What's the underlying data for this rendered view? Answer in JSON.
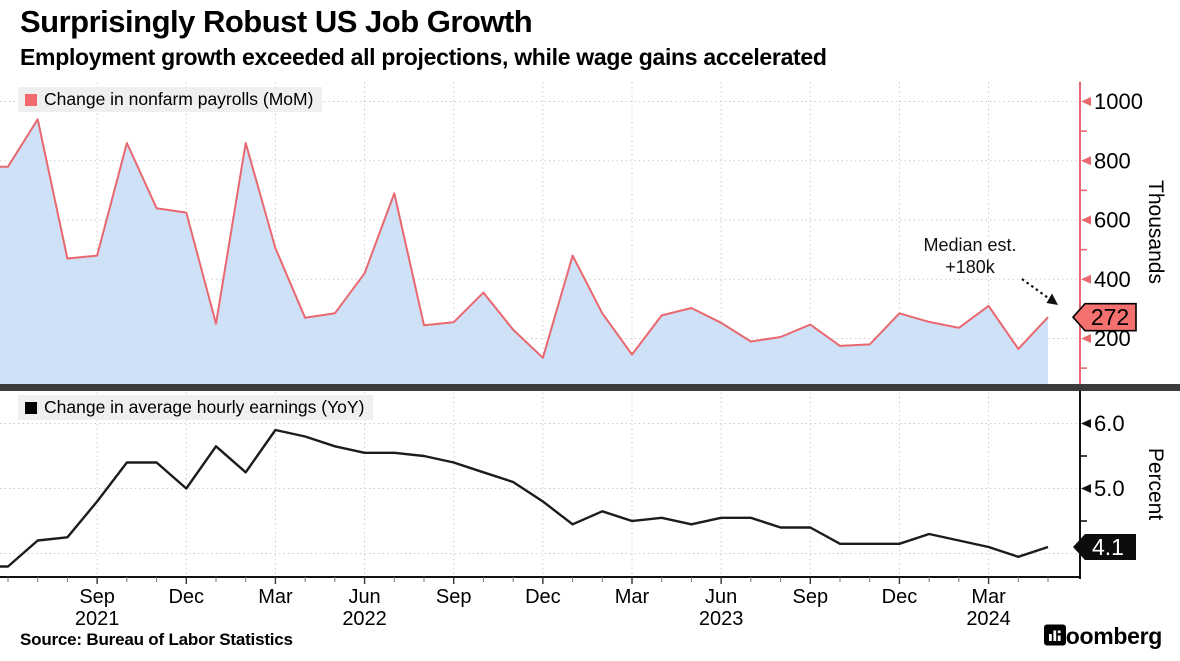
{
  "header": {
    "title": "Surprisingly Robust US Job Growth",
    "subtitle": "Employment growth exceeded all projections, while wage gains accelerated"
  },
  "source": {
    "label": "Source: Bureau of Labor Statistics"
  },
  "brand": {
    "name": "Bloomberg",
    "icon": "bar-chart-icon"
  },
  "annotations": {
    "median_line1": "Median est.",
    "median_line2": "+180k"
  },
  "x_axis": {
    "quarter_ticks": [
      {
        "month": "Sep",
        "year": "2021"
      },
      {
        "month": "Dec"
      },
      {
        "month": "Mar"
      },
      {
        "month": "Jun",
        "year": "2022"
      },
      {
        "month": "Sep"
      },
      {
        "month": "Dec"
      },
      {
        "month": "Mar"
      },
      {
        "month": "Jun",
        "year": "2023"
      },
      {
        "month": "Sep"
      },
      {
        "month": "Dec"
      },
      {
        "month": "Mar",
        "year": "2024"
      }
    ]
  },
  "chart_data": [
    {
      "type": "area",
      "panel": "top",
      "legend": "Change in nonfarm payrolls (MoM)",
      "ylabel": "Thousands",
      "x": [
        "Jun 2021",
        "Jul 2021",
        "Aug 2021",
        "Sep 2021",
        "Oct 2021",
        "Nov 2021",
        "Dec 2021",
        "Jan 2022",
        "Feb 2022",
        "Mar 2022",
        "Apr 2022",
        "May 2022",
        "Jun 2022",
        "Jul 2022",
        "Aug 2022",
        "Sep 2022",
        "Oct 2022",
        "Nov 2022",
        "Dec 2022",
        "Jan 2023",
        "Feb 2023",
        "Mar 2023",
        "Apr 2023",
        "May 2023",
        "Jun 2023",
        "Jul 2023",
        "Aug 2023",
        "Sep 2023",
        "Oct 2023",
        "Nov 2023",
        "Dec 2023",
        "Jan 2024",
        "Feb 2024",
        "Mar 2024",
        "Apr 2024",
        "May 2024"
      ],
      "values": [
        780,
        940,
        470,
        480,
        860,
        640,
        625,
        250,
        860,
        505,
        270,
        285,
        420,
        690,
        245,
        255,
        355,
        230,
        135,
        480,
        285,
        146,
        278,
        303,
        253,
        190,
        205,
        247,
        175,
        180,
        285,
        256,
        236,
        310,
        165,
        272
      ],
      "yticks_major": [
        200,
        400,
        600,
        800,
        1000
      ],
      "yticks_minor": [
        100,
        300,
        500,
        700,
        900
      ],
      "ylim_visible": [
        45,
        1070
      ],
      "grid": true,
      "last_point_label": "272",
      "median_estimate": 180
    },
    {
      "type": "line",
      "panel": "bottom",
      "legend": "Change in average hourly earnings (YoY)",
      "ylabel": "Percent",
      "x": [
        "Jun 2021",
        "Jul 2021",
        "Aug 2021",
        "Sep 2021",
        "Oct 2021",
        "Nov 2021",
        "Dec 2021",
        "Jan 2022",
        "Feb 2022",
        "Mar 2022",
        "Apr 2022",
        "May 2022",
        "Jun 2022",
        "Jul 2022",
        "Aug 2022",
        "Sep 2022",
        "Oct 2022",
        "Nov 2022",
        "Dec 2022",
        "Jan 2023",
        "Feb 2023",
        "Mar 2023",
        "Apr 2023",
        "May 2023",
        "Jun 2023",
        "Jul 2023",
        "Aug 2023",
        "Sep 2023",
        "Oct 2023",
        "Nov 2023",
        "Dec 2023",
        "Jan 2024",
        "Feb 2024",
        "Mar 2024",
        "Apr 2024",
        "May 2024"
      ],
      "values": [
        3.8,
        4.2,
        4.25,
        4.8,
        5.4,
        5.4,
        5.0,
        5.65,
        5.25,
        5.9,
        5.8,
        5.65,
        5.55,
        5.55,
        5.5,
        5.4,
        5.25,
        5.1,
        4.8,
        4.45,
        4.65,
        4.5,
        4.55,
        4.45,
        4.55,
        4.55,
        4.4,
        4.4,
        4.15,
        4.15,
        4.15,
        4.3,
        4.2,
        4.1,
        3.95,
        4.1
      ],
      "yticks_major": [
        5.0,
        6.0
      ],
      "yticks_minor": [
        4.5,
        5.5
      ],
      "gridlines": [
        4.0,
        5.0,
        6.0
      ],
      "ylim_visible": [
        3.55,
        6.35
      ],
      "grid": true,
      "last_point_label": "4.1"
    }
  ],
  "colors": {
    "payrolls_line": "#e9686f",
    "payrolls_fill": "#cfe1f7",
    "payrolls_swatch": "#f4696e",
    "payrolls_tag_fill": "#f4716f",
    "earnings_line": "#1c1c1c",
    "earnings_swatch": "#000000",
    "earnings_tag_fill": "#0d0d0d",
    "divider": "#3b3b3b",
    "grid": "#cdcdcd",
    "axis_top": "#e9686f",
    "axis_bottom": "#111111",
    "tick_minor_x": "#777777",
    "legend_bg": "#efefef"
  }
}
